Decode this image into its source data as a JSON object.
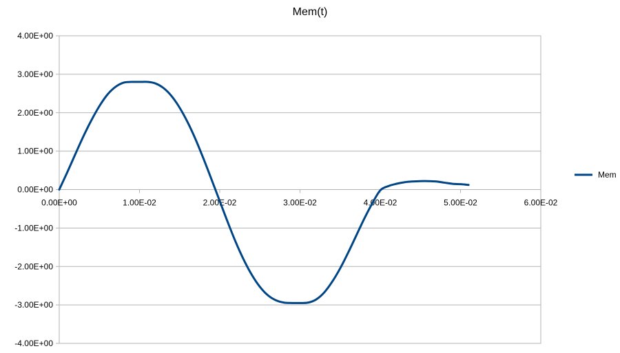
{
  "chart_data": {
    "type": "line",
    "title": "Mem(t)",
    "xlabel": "",
    "ylabel": "",
    "xlim": [
      0,
      0.06
    ],
    "ylim": [
      -4,
      4
    ],
    "x_ticks": [
      "0.00E+00",
      "1.00E-02",
      "2.00E-02",
      "3.00E-02",
      "4.00E-02",
      "5.00E-02",
      "6.00E-02"
    ],
    "y_ticks": [
      "4.00E+00",
      "3.00E+00",
      "2.00E+00",
      "1.00E+00",
      "0.00E+00",
      "-1.00E+00",
      "-2.00E+00",
      "-3.00E+00",
      "-4.00E+00"
    ],
    "grid": "horizontal",
    "legend_position": "right",
    "series": [
      {
        "name": "Mem",
        "color": "#004586",
        "x": [
          0,
          0.001,
          0.002,
          0.003,
          0.004,
          0.005,
          0.006,
          0.007,
          0.008,
          0.009,
          0.01,
          0.011,
          0.012,
          0.013,
          0.014,
          0.015,
          0.016,
          0.017,
          0.018,
          0.019,
          0.02,
          0.021,
          0.022,
          0.023,
          0.024,
          0.025,
          0.026,
          0.027,
          0.028,
          0.029,
          0.03,
          0.031,
          0.032,
          0.033,
          0.034,
          0.035,
          0.036,
          0.037,
          0.038,
          0.039,
          0.04,
          0.041,
          0.042,
          0.043,
          0.044,
          0.045,
          0.046,
          0.047,
          0.048,
          0.049,
          0.05,
          0.051
        ],
        "y": [
          0.0,
          0.45,
          0.92,
          1.38,
          1.8,
          2.17,
          2.47,
          2.67,
          2.78,
          2.8,
          2.8,
          2.8,
          2.76,
          2.64,
          2.43,
          2.13,
          1.75,
          1.3,
          0.79,
          0.25,
          -0.3,
          -0.85,
          -1.37,
          -1.83,
          -2.22,
          -2.53,
          -2.75,
          -2.88,
          -2.94,
          -2.95,
          -2.95,
          -2.94,
          -2.86,
          -2.68,
          -2.4,
          -2.05,
          -1.64,
          -1.2,
          -0.76,
          -0.36,
          -0.02,
          0.09,
          0.15,
          0.19,
          0.21,
          0.22,
          0.22,
          0.21,
          0.18,
          0.15,
          0.14,
          0.12
        ]
      }
    ]
  }
}
